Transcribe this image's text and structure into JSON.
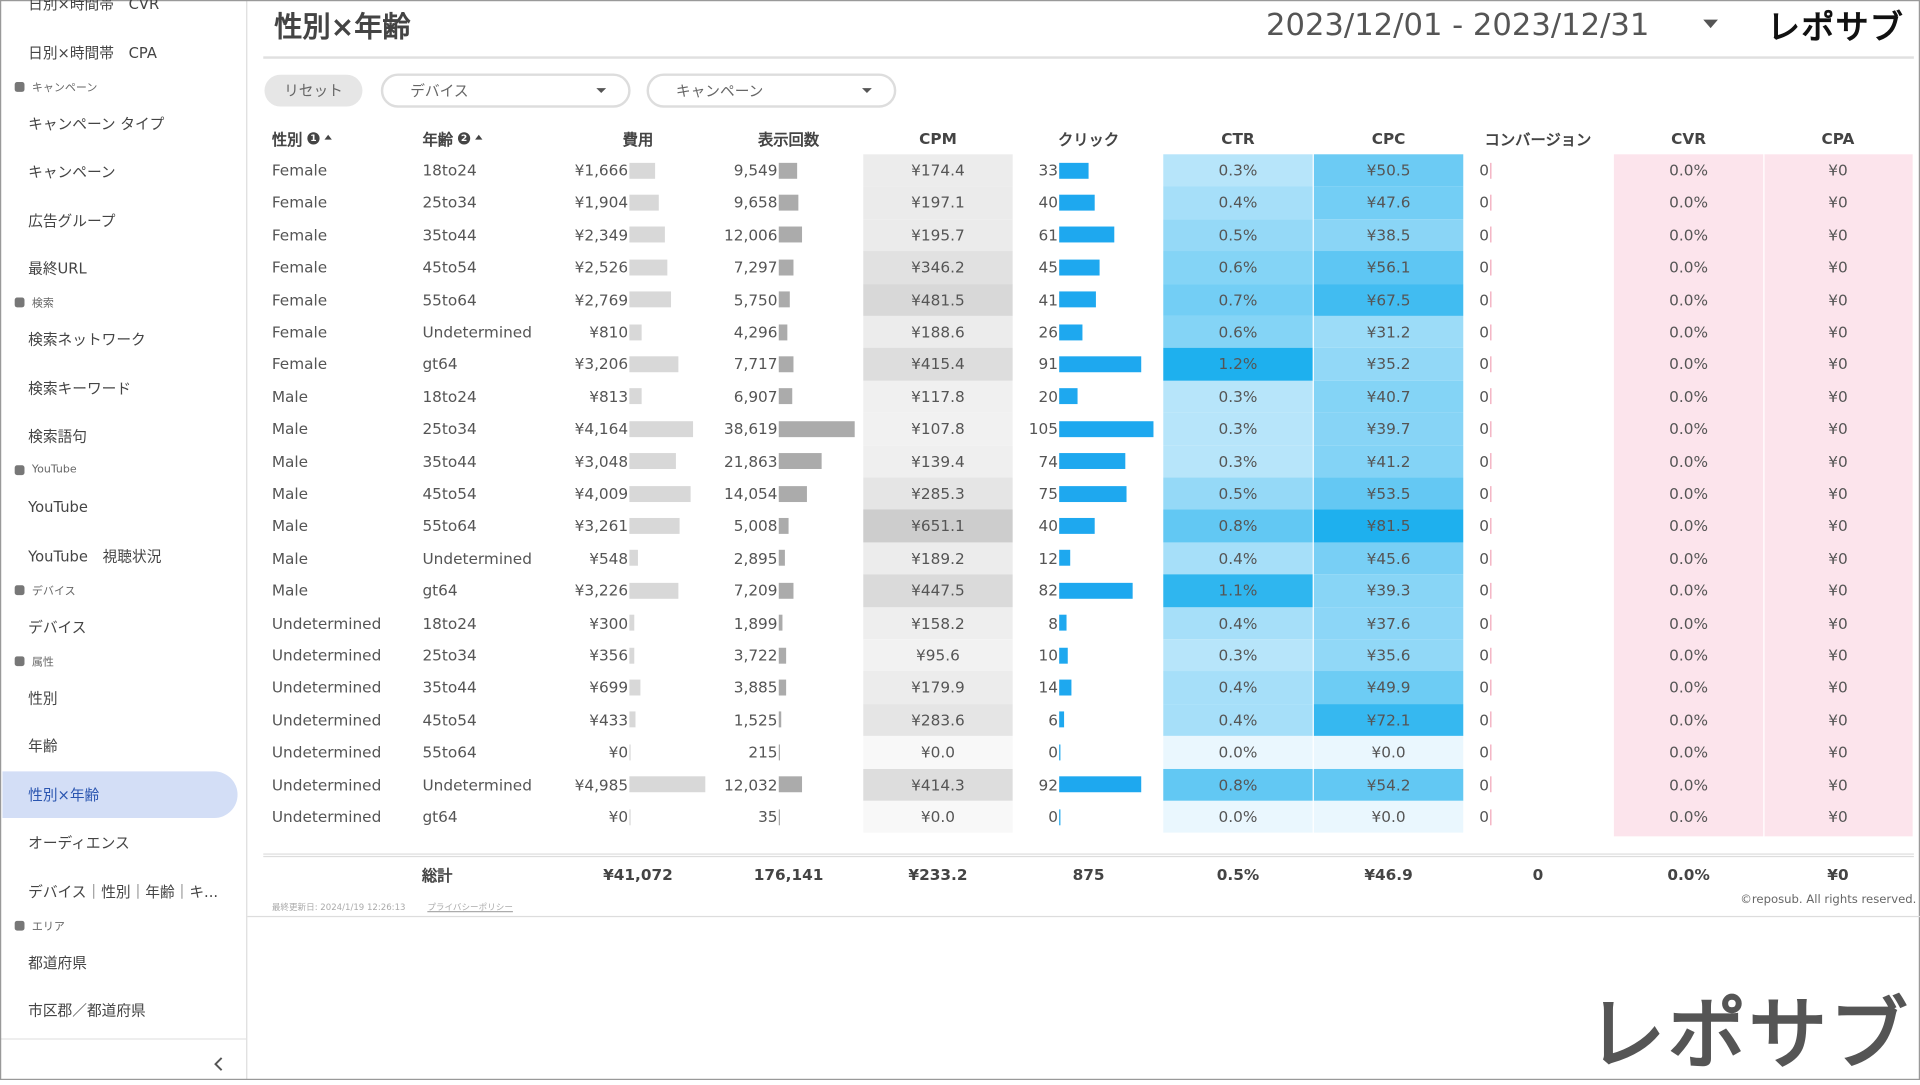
{
  "sidebar": {
    "items": [
      {
        "item": "日別×時間帯　CVR"
      },
      {
        "item": "日別×時間帯　CPA"
      },
      {
        "section": "キャンペーン"
      },
      {
        "item": "キャンペーン タイプ"
      },
      {
        "item": "キャンペーン"
      },
      {
        "item": "広告グループ"
      },
      {
        "item": "最終URL"
      },
      {
        "section": "検索"
      },
      {
        "item": "検索ネットワーク"
      },
      {
        "item": "検索キーワード"
      },
      {
        "item": "検索語句"
      },
      {
        "section": "YouTube"
      },
      {
        "item": "YouTube"
      },
      {
        "item": "YouTube　視聴状況"
      },
      {
        "section": "デバイス"
      },
      {
        "item": "デバイス"
      },
      {
        "section": "属性"
      },
      {
        "item": "性別"
      },
      {
        "item": "年齢"
      },
      {
        "item": "性別×年齢",
        "active": true
      },
      {
        "item": "オーディエンス"
      },
      {
        "item": "デバイス｜性別｜年齢｜キ..."
      },
      {
        "section": "エリア"
      },
      {
        "item": "都道府県"
      },
      {
        "item": "市区郡／都道府県"
      }
    ]
  },
  "header": {
    "title": "性別×年齢",
    "date_range": "2023/12/01 - 2023/12/31",
    "logo": "レポサブ"
  },
  "filters": {
    "reset": "リセット",
    "device": "デバイス",
    "campaign": "キャンペーン"
  },
  "table": {
    "columns": [
      {
        "label": "性別",
        "sort": 1
      },
      {
        "label": "年齢",
        "sort": 2
      },
      {
        "label": "費用"
      },
      {
        "label": "表示回数"
      },
      {
        "label": "CPM"
      },
      {
        "label": "クリック"
      },
      {
        "label": "CTR"
      },
      {
        "label": "CPC"
      },
      {
        "label": "コンバージョン"
      },
      {
        "label": "CVR"
      },
      {
        "label": "CPA"
      }
    ],
    "rows": [
      [
        "Female",
        "18to24",
        "¥1,666",
        "9,549",
        "¥174.4",
        "33",
        "0.3%",
        "¥50.5",
        "0",
        "0.0%",
        "¥0"
      ],
      [
        "Female",
        "25to34",
        "¥1,904",
        "9,658",
        "¥197.1",
        "40",
        "0.4%",
        "¥47.6",
        "0",
        "0.0%",
        "¥0"
      ],
      [
        "Female",
        "35to44",
        "¥2,349",
        "12,006",
        "¥195.7",
        "61",
        "0.5%",
        "¥38.5",
        "0",
        "0.0%",
        "¥0"
      ],
      [
        "Female",
        "45to54",
        "¥2,526",
        "7,297",
        "¥346.2",
        "45",
        "0.6%",
        "¥56.1",
        "0",
        "0.0%",
        "¥0"
      ],
      [
        "Female",
        "55to64",
        "¥2,769",
        "5,750",
        "¥481.5",
        "41",
        "0.7%",
        "¥67.5",
        "0",
        "0.0%",
        "¥0"
      ],
      [
        "Female",
        "Undetermined",
        "¥810",
        "4,296",
        "¥188.6",
        "26",
        "0.6%",
        "¥31.2",
        "0",
        "0.0%",
        "¥0"
      ],
      [
        "Female",
        "gt64",
        "¥3,206",
        "7,717",
        "¥415.4",
        "91",
        "1.2%",
        "¥35.2",
        "0",
        "0.0%",
        "¥0"
      ],
      [
        "Male",
        "18to24",
        "¥813",
        "6,907",
        "¥117.8",
        "20",
        "0.3%",
        "¥40.7",
        "0",
        "0.0%",
        "¥0"
      ],
      [
        "Male",
        "25to34",
        "¥4,164",
        "38,619",
        "¥107.8",
        "105",
        "0.3%",
        "¥39.7",
        "0",
        "0.0%",
        "¥0"
      ],
      [
        "Male",
        "35to44",
        "¥3,048",
        "21,863",
        "¥139.4",
        "74",
        "0.3%",
        "¥41.2",
        "0",
        "0.0%",
        "¥0"
      ],
      [
        "Male",
        "45to54",
        "¥4,009",
        "14,054",
        "¥285.3",
        "75",
        "0.5%",
        "¥53.5",
        "0",
        "0.0%",
        "¥0"
      ],
      [
        "Male",
        "55to64",
        "¥3,261",
        "5,008",
        "¥651.1",
        "40",
        "0.8%",
        "¥81.5",
        "0",
        "0.0%",
        "¥0"
      ],
      [
        "Male",
        "Undetermined",
        "¥548",
        "2,895",
        "¥189.2",
        "12",
        "0.4%",
        "¥45.6",
        "0",
        "0.0%",
        "¥0"
      ],
      [
        "Male",
        "gt64",
        "¥3,226",
        "7,209",
        "¥447.5",
        "82",
        "1.1%",
        "¥39.3",
        "0",
        "0.0%",
        "¥0"
      ],
      [
        "Undetermined",
        "18to24",
        "¥300",
        "1,899",
        "¥158.2",
        "8",
        "0.4%",
        "¥37.6",
        "0",
        "0.0%",
        "¥0"
      ],
      [
        "Undetermined",
        "25to34",
        "¥356",
        "3,722",
        "¥95.6",
        "10",
        "0.3%",
        "¥35.6",
        "0",
        "0.0%",
        "¥0"
      ],
      [
        "Undetermined",
        "35to44",
        "¥699",
        "3,885",
        "¥179.9",
        "14",
        "0.4%",
        "¥49.9",
        "0",
        "0.0%",
        "¥0"
      ],
      [
        "Undetermined",
        "45to54",
        "¥433",
        "1,525",
        "¥283.6",
        "6",
        "0.4%",
        "¥72.1",
        "0",
        "0.0%",
        "¥0"
      ],
      [
        "Undetermined",
        "55to64",
        "¥0",
        "215",
        "¥0.0",
        "0",
        "0.0%",
        "¥0.0",
        "0",
        "0.0%",
        "¥0"
      ],
      [
        "Undetermined",
        "Undetermined",
        "¥4,985",
        "12,032",
        "¥414.3",
        "92",
        "0.8%",
        "¥54.2",
        "0",
        "0.0%",
        "¥0"
      ],
      [
        "Undetermined",
        "gt64",
        "¥0",
        "35",
        "¥0.0",
        "0",
        "0.0%",
        "¥0.0",
        "0",
        "0.0%",
        "¥0"
      ]
    ],
    "totals": {
      "label": "総計",
      "values": [
        "¥41,072",
        "176,141",
        "¥233.2",
        "875",
        "0.5%",
        "¥46.9",
        "0",
        "0.0%",
        "¥0"
      ]
    }
  },
  "footer": {
    "updated": "最終更新日: 2024/1/19 12:26:13",
    "privacy": "プライバシーポリシー",
    "copyright": "©reposub. All rights reserved."
  },
  "watermark": "レポサブ"
}
